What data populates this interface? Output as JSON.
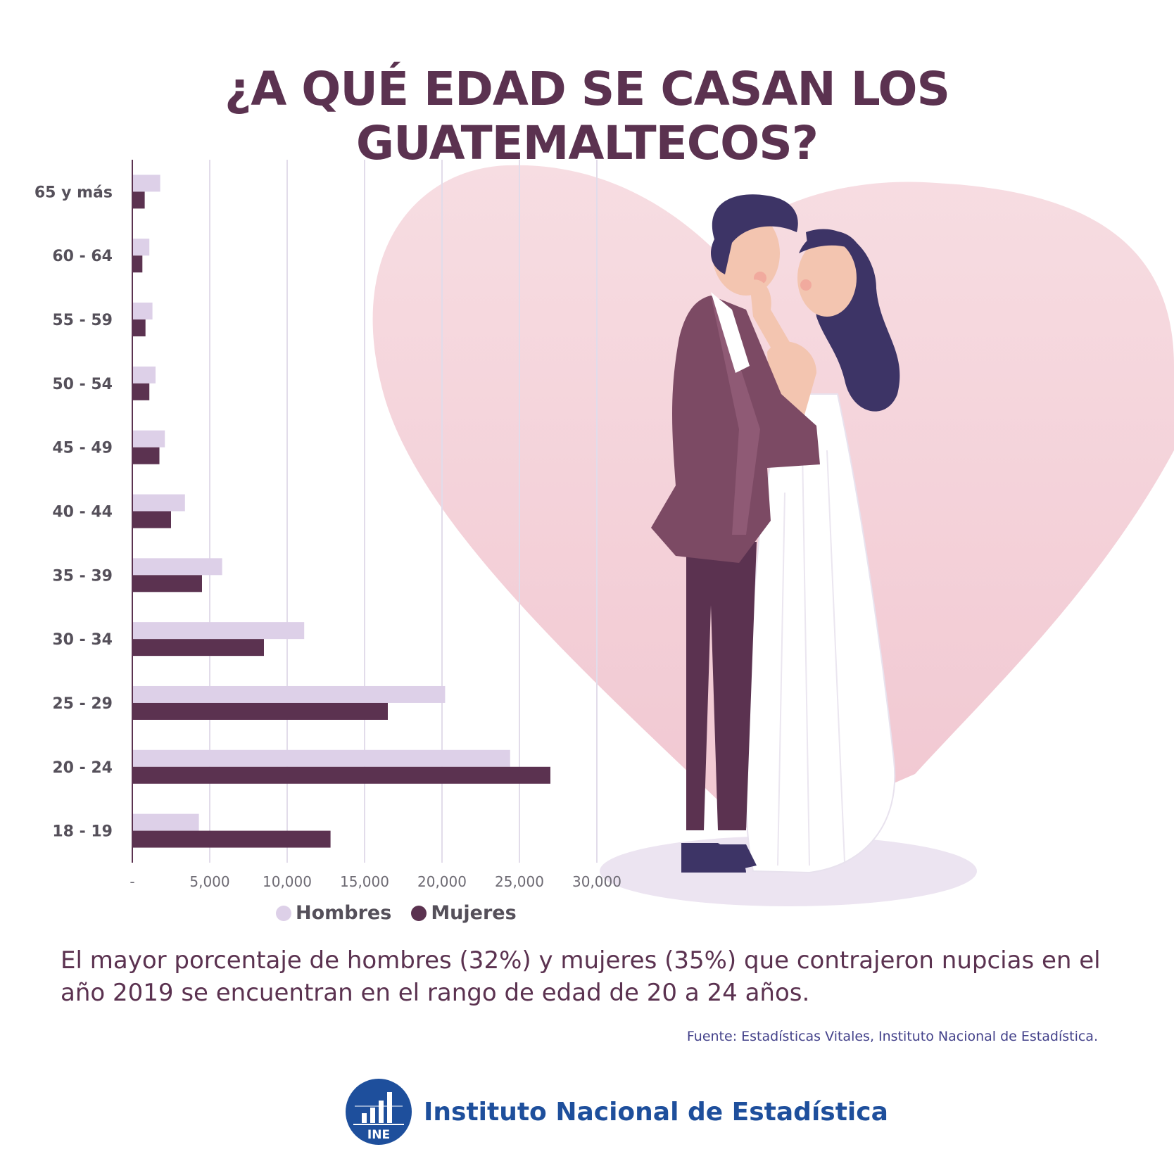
{
  "title": "¿A QUÉ EDAD SE CASAN LOS GUATEMALTECOS?",
  "chart_data": {
    "type": "bar",
    "orientation": "horizontal",
    "categories": [
      "65 y más",
      "60 - 64",
      "55 - 59",
      "50 - 54",
      "45 - 49",
      "40 - 44",
      "35 - 39",
      "30 - 34",
      "25 - 29",
      "20 - 24",
      "18 - 19"
    ],
    "series": [
      {
        "name": "Hombres",
        "color": "#ddd0e8",
        "values": [
          1800,
          1100,
          1300,
          1500,
          2100,
          3400,
          5800,
          11100,
          20200,
          24400,
          4300
        ]
      },
      {
        "name": "Mujeres",
        "color": "#5b3250",
        "values": [
          800,
          650,
          850,
          1100,
          1750,
          2500,
          4500,
          8500,
          16500,
          27000,
          12800
        ]
      }
    ],
    "xlim": [
      0,
      30000
    ],
    "xticks": [
      "-",
      "5,000",
      "10,000",
      "15,000",
      "20,000",
      "25,000",
      "30,000"
    ],
    "grid": true,
    "legend": "bottom"
  },
  "legend": {
    "hombres": "Hombres",
    "mujeres": "Mujeres"
  },
  "summary": "El mayor porcentaje de hombres (32%) y mujeres (35%) que contrajeron nupcias en el año 2019 se encuentran en el rango de edad de 20 a 24 años.",
  "source": "Fuente: Estadísticas Vitales, Instituto Nacional de Estadística.",
  "footer": {
    "logo_text": "INE",
    "organization": "Instituto Nacional de Estadística"
  },
  "colors": {
    "title": "#5b3250",
    "heart": "#f4d3d9",
    "hombres": "#ddd0e8",
    "mujeres": "#5b3250",
    "source": "#43418a",
    "brand": "#1e4f9c"
  }
}
